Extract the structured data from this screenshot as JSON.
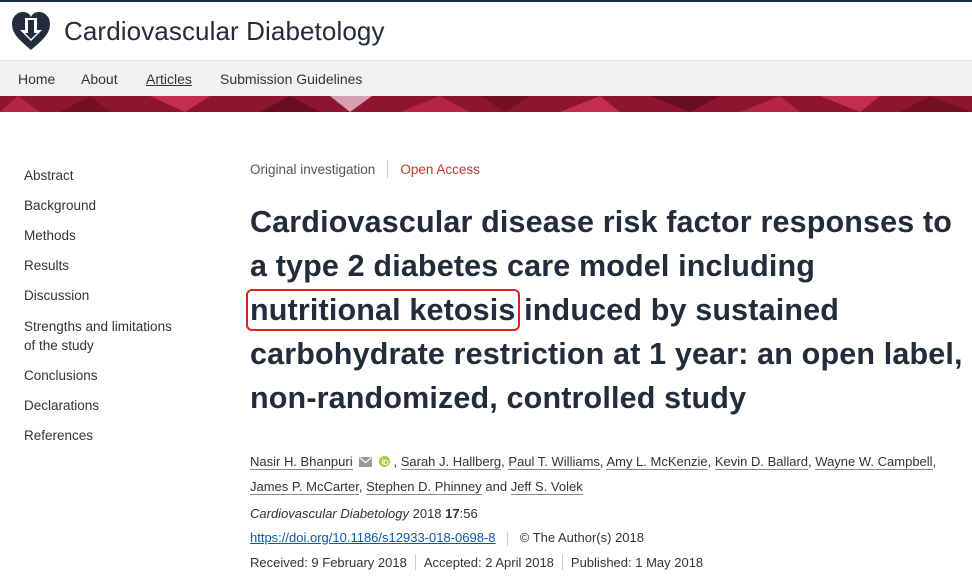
{
  "site": {
    "title": "Cardiovascular Diabetology"
  },
  "nav": [
    {
      "label": "Home"
    },
    {
      "label": "About"
    },
    {
      "label": "Articles",
      "active": true
    },
    {
      "label": "Submission Guidelines"
    }
  ],
  "sidebar": {
    "items": [
      {
        "label": "Abstract"
      },
      {
        "label": "Background"
      },
      {
        "label": "Methods"
      },
      {
        "label": "Results"
      },
      {
        "label": "Discussion"
      },
      {
        "label": "Strengths and limitations of the study"
      },
      {
        "label": "Conclusions"
      },
      {
        "label": "Declarations"
      },
      {
        "label": "References"
      }
    ]
  },
  "article": {
    "type": "Original investigation",
    "access": "Open Access",
    "title_before": "Cardiovascular disease risk factor responses to a type 2 diabetes care model including ",
    "title_highlight": "nutritional ketosis",
    "title_after": " induced by sustained carbohydrate restriction at 1 year: an open label, non-randomized, controlled study",
    "authors": [
      "Nasir H. Bhanpuri",
      "Sarah J. Hallberg",
      "Paul T. Williams",
      "Amy L. McKenzie",
      "Kevin D. Ballard",
      "Wayne W. Campbell",
      "James P. McCarter",
      "Stephen D. Phinney",
      "Jeff S. Volek"
    ],
    "authors_and": "and",
    "journal": "Cardiovascular Diabetology",
    "year": "2018",
    "volume": "17",
    "article_number": ":56",
    "doi_url": "https://doi.org/10.1186/s12933-018-0698-8",
    "copyright": "© The Author(s) 2018",
    "received": "Received: 9 February 2018",
    "accepted": "Accepted: 2 April 2018",
    "published": "Published: 1 May 2018"
  },
  "colors": {
    "brand_navy": "#222c3a",
    "banner": "#8e1530",
    "open_access": "#c0392b",
    "highlight_box": "#e02020",
    "link": "#0a5aa8"
  }
}
